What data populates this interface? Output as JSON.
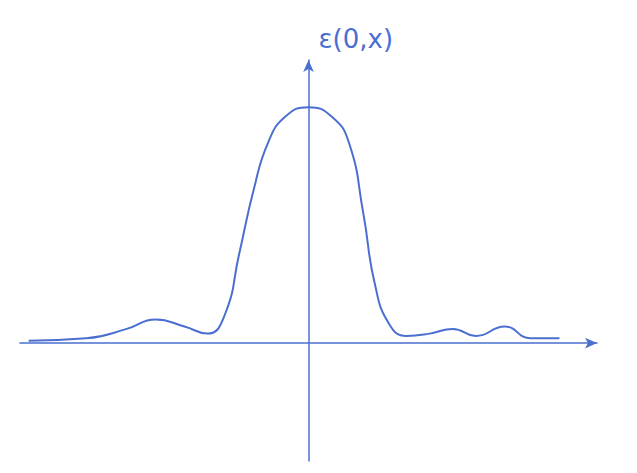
{
  "chart_data": {
    "type": "line",
    "y_label": "ε(0,x)",
    "x": [
      -9.7,
      -7.7,
      -6.3,
      -5.3,
      -4.3,
      -3.5,
      -2.9,
      -2.4,
      -1.9,
      -1.4,
      -0.8,
      0,
      0.8,
      1.4,
      1.9,
      2.3,
      2.8,
      3.4,
      4.2,
      5.0,
      5.8,
      6.8,
      7.7,
      8.7
    ],
    "values": [
      0.01,
      0.02,
      0.06,
      0.1,
      0.07,
      0.04,
      0.12,
      0.38,
      0.65,
      0.85,
      0.96,
      1.0,
      0.96,
      0.85,
      0.55,
      0.25,
      0.08,
      0.03,
      0.04,
      0.06,
      0.03,
      0.07,
      0.02,
      0.02
    ],
    "color": "#4a6fd0",
    "xlim": [
      -10,
      10
    ],
    "ylim": [
      -0.5,
      1.2
    ],
    "grid": false,
    "tick_labels": false
  }
}
